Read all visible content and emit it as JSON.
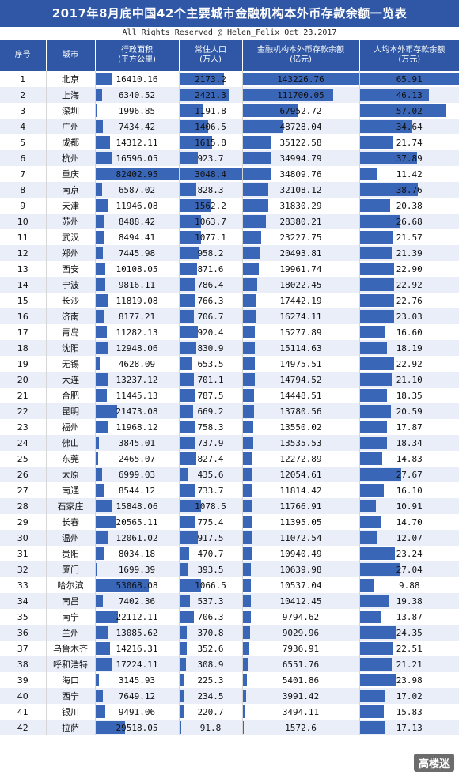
{
  "title": "2017年8月底中国42个主要城市金融机构本外币存款余额一览表",
  "credit": "All Rights Reserved @ Helen_Felix Oct 23.2017",
  "headers": {
    "index": "序号",
    "city": "城市",
    "area": "行政面积\n(平方公里)",
    "population": "常住人口\n(万人)",
    "deposits": "金融机构本外币存款余额\n(亿元)",
    "per_capita": "人均本外币存款余额\n(万元)"
  },
  "maxima": {
    "area": 82402.95,
    "population": 3048.4,
    "deposits": 143226.76,
    "per_capita": 65.91
  },
  "rows": [
    {
      "index": "1",
      "city": "北京",
      "area": "16410.16",
      "population": "2173.2",
      "deposits": "143226.76",
      "per_capita": "65.91"
    },
    {
      "index": "2",
      "city": "上海",
      "area": "6340.52",
      "population": "2421.3",
      "deposits": "111700.05",
      "per_capita": "46.13"
    },
    {
      "index": "3",
      "city": "深圳",
      "area": "1996.85",
      "population": "1191.8",
      "deposits": "67952.72",
      "per_capita": "57.02"
    },
    {
      "index": "4",
      "city": "广州",
      "area": "7434.42",
      "population": "1406.5",
      "deposits": "48728.04",
      "per_capita": "34.64"
    },
    {
      "index": "5",
      "city": "成都",
      "area": "14312.11",
      "population": "1615.8",
      "deposits": "35122.58",
      "per_capita": "21.74"
    },
    {
      "index": "6",
      "city": "杭州",
      "area": "16596.05",
      "population": "923.7",
      "deposits": "34994.79",
      "per_capita": "37.89"
    },
    {
      "index": "7",
      "city": "重庆",
      "area": "82402.95",
      "population": "3048.4",
      "deposits": "34809.76",
      "per_capita": "11.42"
    },
    {
      "index": "8",
      "city": "南京",
      "area": "6587.02",
      "population": "828.3",
      "deposits": "32108.12",
      "per_capita": "38.76"
    },
    {
      "index": "9",
      "city": "天津",
      "area": "11946.08",
      "population": "1562.2",
      "deposits": "31830.29",
      "per_capita": "20.38"
    },
    {
      "index": "10",
      "city": "苏州",
      "area": "8488.42",
      "population": "1063.7",
      "deposits": "28380.21",
      "per_capita": "26.68"
    },
    {
      "index": "11",
      "city": "武汉",
      "area": "8494.41",
      "population": "1077.1",
      "deposits": "23227.75",
      "per_capita": "21.57"
    },
    {
      "index": "12",
      "city": "郑州",
      "area": "7445.98",
      "population": "958.2",
      "deposits": "20493.81",
      "per_capita": "21.39"
    },
    {
      "index": "13",
      "city": "西安",
      "area": "10108.05",
      "population": "871.6",
      "deposits": "19961.74",
      "per_capita": "22.90"
    },
    {
      "index": "14",
      "city": "宁波",
      "area": "9816.11",
      "population": "786.4",
      "deposits": "18022.45",
      "per_capita": "22.92"
    },
    {
      "index": "15",
      "city": "长沙",
      "area": "11819.08",
      "population": "766.3",
      "deposits": "17442.19",
      "per_capita": "22.76"
    },
    {
      "index": "16",
      "city": "济南",
      "area": "8177.21",
      "population": "706.7",
      "deposits": "16274.11",
      "per_capita": "23.03"
    },
    {
      "index": "17",
      "city": "青岛",
      "area": "11282.13",
      "population": "920.4",
      "deposits": "15277.89",
      "per_capita": "16.60"
    },
    {
      "index": "18",
      "city": "沈阳",
      "area": "12948.06",
      "population": "830.9",
      "deposits": "15114.63",
      "per_capita": "18.19"
    },
    {
      "index": "19",
      "city": "无锡",
      "area": "4628.09",
      "population": "653.5",
      "deposits": "14975.51",
      "per_capita": "22.92"
    },
    {
      "index": "20",
      "city": "大连",
      "area": "13237.12",
      "population": "701.1",
      "deposits": "14794.52",
      "per_capita": "21.10"
    },
    {
      "index": "21",
      "city": "合肥",
      "area": "11445.13",
      "population": "787.5",
      "deposits": "14448.51",
      "per_capita": "18.35"
    },
    {
      "index": "22",
      "city": "昆明",
      "area": "21473.08",
      "population": "669.2",
      "deposits": "13780.56",
      "per_capita": "20.59"
    },
    {
      "index": "23",
      "city": "福州",
      "area": "11968.12",
      "population": "758.3",
      "deposits": "13550.02",
      "per_capita": "17.87"
    },
    {
      "index": "24",
      "city": "佛山",
      "area": "3845.01",
      "population": "737.9",
      "deposits": "13535.53",
      "per_capita": "18.34"
    },
    {
      "index": "25",
      "city": "东莞",
      "area": "2465.07",
      "population": "827.4",
      "deposits": "12272.89",
      "per_capita": "14.83"
    },
    {
      "index": "26",
      "city": "太原",
      "area": "6999.03",
      "population": "435.6",
      "deposits": "12054.61",
      "per_capita": "27.67"
    },
    {
      "index": "27",
      "city": "南通",
      "area": "8544.12",
      "population": "733.7",
      "deposits": "11814.42",
      "per_capita": "16.10"
    },
    {
      "index": "28",
      "city": "石家庄",
      "area": "15848.06",
      "population": "1078.5",
      "deposits": "11766.91",
      "per_capita": "10.91"
    },
    {
      "index": "29",
      "city": "长春",
      "area": "20565.11",
      "population": "775.4",
      "deposits": "11395.05",
      "per_capita": "14.70"
    },
    {
      "index": "30",
      "city": "温州",
      "area": "12061.02",
      "population": "917.5",
      "deposits": "11072.54",
      "per_capita": "12.07"
    },
    {
      "index": "31",
      "city": "贵阳",
      "area": "8034.18",
      "population": "470.7",
      "deposits": "10940.49",
      "per_capita": "23.24"
    },
    {
      "index": "32",
      "city": "厦门",
      "area": "1699.39",
      "population": "393.5",
      "deposits": "10639.98",
      "per_capita": "27.04"
    },
    {
      "index": "33",
      "city": "哈尔滨",
      "area": "53068.08",
      "population": "1066.5",
      "deposits": "10537.04",
      "per_capita": "9.88"
    },
    {
      "index": "34",
      "city": "南昌",
      "area": "7402.36",
      "population": "537.3",
      "deposits": "10412.45",
      "per_capita": "19.38"
    },
    {
      "index": "35",
      "city": "南宁",
      "area": "22112.11",
      "population": "706.3",
      "deposits": "9794.62",
      "per_capita": "13.87"
    },
    {
      "index": "36",
      "city": "兰州",
      "area": "13085.62",
      "population": "370.8",
      "deposits": "9029.96",
      "per_capita": "24.35"
    },
    {
      "index": "37",
      "city": "乌鲁木齐",
      "area": "14216.31",
      "population": "352.6",
      "deposits": "7936.91",
      "per_capita": "22.51"
    },
    {
      "index": "38",
      "city": "呼和浩特",
      "area": "17224.11",
      "population": "308.9",
      "deposits": "6551.76",
      "per_capita": "21.21"
    },
    {
      "index": "39",
      "city": "海口",
      "area": "3145.93",
      "population": "225.3",
      "deposits": "5401.86",
      "per_capita": "23.98"
    },
    {
      "index": "40",
      "city": "西宁",
      "area": "7649.12",
      "population": "234.5",
      "deposits": "3991.42",
      "per_capita": "17.02"
    },
    {
      "index": "41",
      "city": "银川",
      "area": "9491.06",
      "population": "220.7",
      "deposits": "3494.11",
      "per_capita": "15.83"
    },
    {
      "index": "42",
      "city": "拉萨",
      "area": "29518.05",
      "population": "91.8",
      "deposits": "1572.6",
      "per_capita": "17.13"
    }
  ],
  "watermark": "高楼迷",
  "colors": {
    "header": "#2f57a6",
    "bar": "#3a66b8",
    "alt_row": "#e9eef8"
  }
}
